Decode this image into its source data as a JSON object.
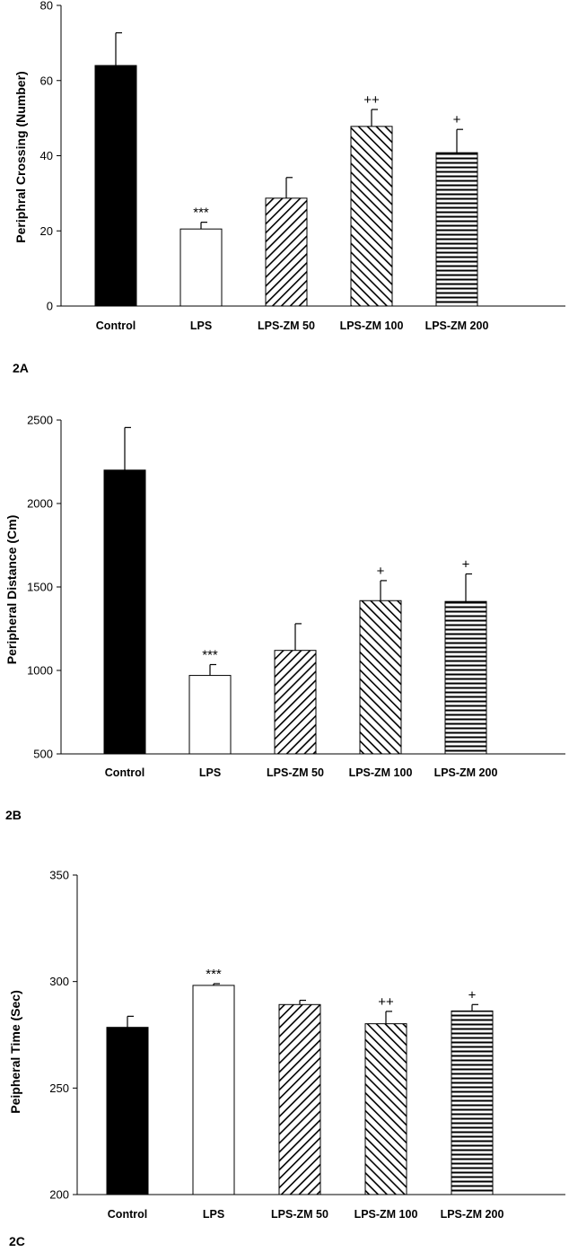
{
  "chart_data": [
    {
      "type": "bar",
      "panel_label": "2A",
      "ylabel": "Periphral Crossing (Number)",
      "ylim": [
        0,
        80
      ],
      "yticks": [
        0,
        20,
        40,
        60,
        80
      ],
      "categories": [
        "Control",
        "LPS",
        "LPS-ZM 50",
        "LPS-ZM 100",
        "LPS-ZM 200"
      ],
      "values": [
        64,
        20.5,
        28.7,
        47.8,
        40.8
      ],
      "errors": [
        8.7,
        1.8,
        5.5,
        4.5,
        6.2
      ],
      "annotations": [
        "",
        "***",
        "",
        "++",
        "+"
      ],
      "patterns": [
        "solid-black",
        "white",
        "diag-right",
        "diag-left",
        "horizontal"
      ],
      "grid": false
    },
    {
      "type": "bar",
      "panel_label": "2B",
      "ylabel": "Peripheral Distance (Cm)",
      "ylim": [
        500,
        2500
      ],
      "yticks": [
        500,
        1000,
        1500,
        2000,
        2500
      ],
      "categories": [
        "Control",
        "LPS",
        "LPS-ZM 50",
        "LPS-ZM 100",
        "LPS-ZM 200"
      ],
      "values": [
        2200,
        970,
        1120,
        1418,
        1413
      ],
      "errors": [
        255,
        65,
        160,
        120,
        165
      ],
      "annotations": [
        "",
        "***",
        "",
        "+",
        "+"
      ],
      "patterns": [
        "solid-black",
        "white",
        "diag-right",
        "diag-left",
        "horizontal"
      ],
      "grid": false
    },
    {
      "type": "bar",
      "panel_label": "2C",
      "ylabel": "Peipheral Time (Sec)",
      "ylim": [
        200,
        350
      ],
      "yticks": [
        200,
        250,
        300,
        350
      ],
      "categories": [
        "Control",
        "LPS",
        "LPS-ZM 50",
        "LPS-ZM 100",
        "LPS-ZM 200"
      ],
      "values": [
        278.5,
        298.2,
        289.2,
        280.2,
        286.2
      ],
      "errors": [
        5.2,
        0.8,
        2,
        5.8,
        3
      ],
      "annotations": [
        "",
        "***",
        "",
        "++",
        "+"
      ],
      "patterns": [
        "solid-black",
        "white",
        "diag-right",
        "diag-left",
        "horizontal"
      ],
      "grid": false
    }
  ]
}
